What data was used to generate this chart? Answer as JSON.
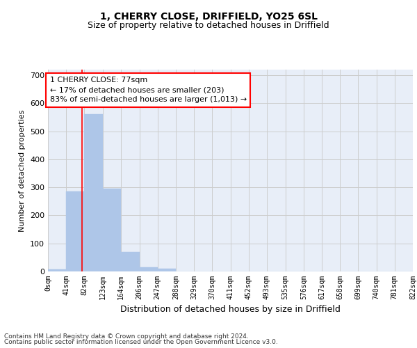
{
  "title": "1, CHERRY CLOSE, DRIFFIELD, YO25 6SL",
  "subtitle": "Size of property relative to detached houses in Driffield",
  "xlabel": "Distribution of detached houses by size in Driffield",
  "ylabel": "Number of detached properties",
  "bar_edges": [
    0,
    41,
    82,
    123,
    164,
    206,
    247,
    288,
    329,
    370,
    411,
    452,
    493,
    535,
    576,
    617,
    658,
    699,
    740,
    781,
    822
  ],
  "bar_heights": [
    8,
    285,
    560,
    295,
    70,
    14,
    10,
    0,
    0,
    0,
    0,
    0,
    0,
    0,
    0,
    0,
    0,
    0,
    0,
    0
  ],
  "bar_color": "#aec6e8",
  "bar_edgecolor": "#aec6e8",
  "grid_color": "#cccccc",
  "bg_color": "#e8eef8",
  "property_line_x": 77,
  "property_line_color": "red",
  "annotation_text": "1 CHERRY CLOSE: 77sqm\n← 17% of detached houses are smaller (203)\n83% of semi-detached houses are larger (1,013) →",
  "annotation_box_color": "red",
  "annotation_bg": "white",
  "ylim": [
    0,
    720
  ],
  "yticks": [
    0,
    100,
    200,
    300,
    400,
    500,
    600,
    700
  ],
  "tick_labels": [
    "0sqm",
    "41sqm",
    "82sqm",
    "123sqm",
    "164sqm",
    "206sqm",
    "247sqm",
    "288sqm",
    "329sqm",
    "370sqm",
    "411sqm",
    "452sqm",
    "493sqm",
    "535sqm",
    "576sqm",
    "617sqm",
    "658sqm",
    "699sqm",
    "740sqm",
    "781sqm",
    "822sqm"
  ],
  "footer_line1": "Contains HM Land Registry data © Crown copyright and database right 2024.",
  "footer_line2": "Contains public sector information licensed under the Open Government Licence v3.0.",
  "title_fontsize": 10,
  "subtitle_fontsize": 9,
  "xlabel_fontsize": 9,
  "ylabel_fontsize": 8,
  "tick_fontsize": 7,
  "footer_fontsize": 6.5,
  "annot_fontsize": 8
}
